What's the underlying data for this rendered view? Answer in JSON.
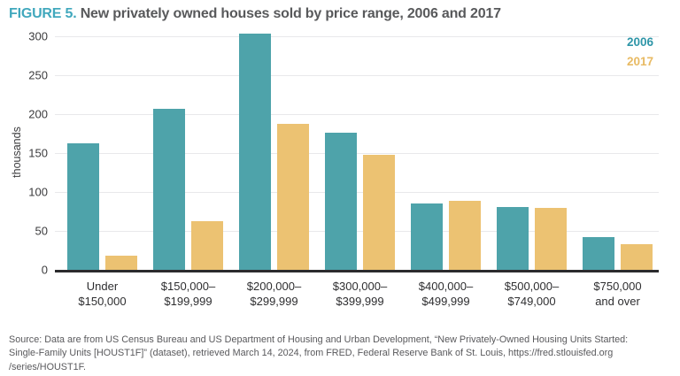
{
  "title": {
    "prefix": "FIGURE 5.",
    "rest": "New privately owned houses sold by price range, 2006 and 2017"
  },
  "colors": {
    "title_accent": "#41A8BD",
    "title_text": "#58595B",
    "bar_2006": "#4EA3AA",
    "bar_2017": "#ECC272",
    "legend_2006": "#2F96A8",
    "legend_2017": "#E8BA63",
    "gridline": "#E8E8EB",
    "axis": "#2B2B2D",
    "tick_text": "#3B3B3D",
    "source_text": "#59595C"
  },
  "legend": {
    "items": [
      {
        "label": "2006",
        "color": "#2F96A8"
      },
      {
        "label": "2017",
        "color": "#E8BA63"
      }
    ]
  },
  "chart_data": {
    "type": "bar",
    "title": "New privately owned houses sold by price range, 2006 and 2017",
    "xlabel": "",
    "ylabel": "thousands",
    "ylim": [
      0,
      300
    ],
    "yticks": [
      0,
      50,
      100,
      150,
      200,
      250,
      300
    ],
    "grid": true,
    "legend_position": "top-right",
    "categories": [
      "Under\n$150,000",
      "$150,000–\n$199,999",
      "$200,000–\n$299,999",
      "$300,000–\n$399,999",
      "$400,000–\n$499,999",
      "$500,000–\n$749,000",
      "$750,000\nand over"
    ],
    "series": [
      {
        "name": "2006",
        "color": "#4EA3AA",
        "values": [
          163,
          207,
          303,
          176,
          85,
          81,
          42
        ]
      },
      {
        "name": "2017",
        "color": "#ECC272",
        "values": [
          18,
          62,
          187,
          148,
          89,
          79,
          33
        ]
      }
    ]
  },
  "source": {
    "lines": [
      "Source: Data are from US Census Bureau and US Department of Housing and Urban Development, “New Privately-Owned Housing Units Started:",
      "Single-Family Units [HOUST1F]” (dataset), retrieved March 14, 2024, from FRED, Federal Reserve Bank of St. Louis, https://fred.stlouisfed.org",
      "/series/HOUST1F."
    ]
  }
}
